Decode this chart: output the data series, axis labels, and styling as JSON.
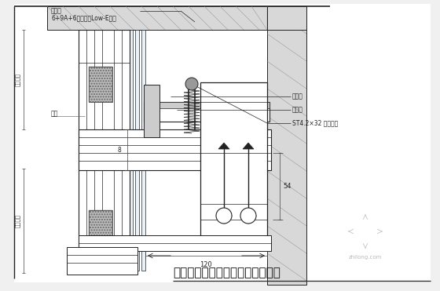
{
  "title": "某明框玻璃幕墙（八）纵剖节点图",
  "bg": "#f0f0f0",
  "lc": "#222222",
  "lc2": "#555555",
  "white": "#ffffff",
  "gray1": "#aaaaaa",
  "gray2": "#cccccc",
  "gray3": "#888888",
  "label_top1": "玻璃料",
  "label_top2": "6+9A+6钢化中空Low-E玻璃",
  "label_left1": "分格尺寸",
  "label_left2": "间距",
  "label_left3": "分格尺寸",
  "label_right1": "密封胶",
  "label_right2": "泡沫棒",
  "label_right3": "ST4.2×32 自钻螺钉",
  "dim_8": "8",
  "dim_54": "54",
  "dim_120": "120",
  "wm_text": "zhilong.com"
}
